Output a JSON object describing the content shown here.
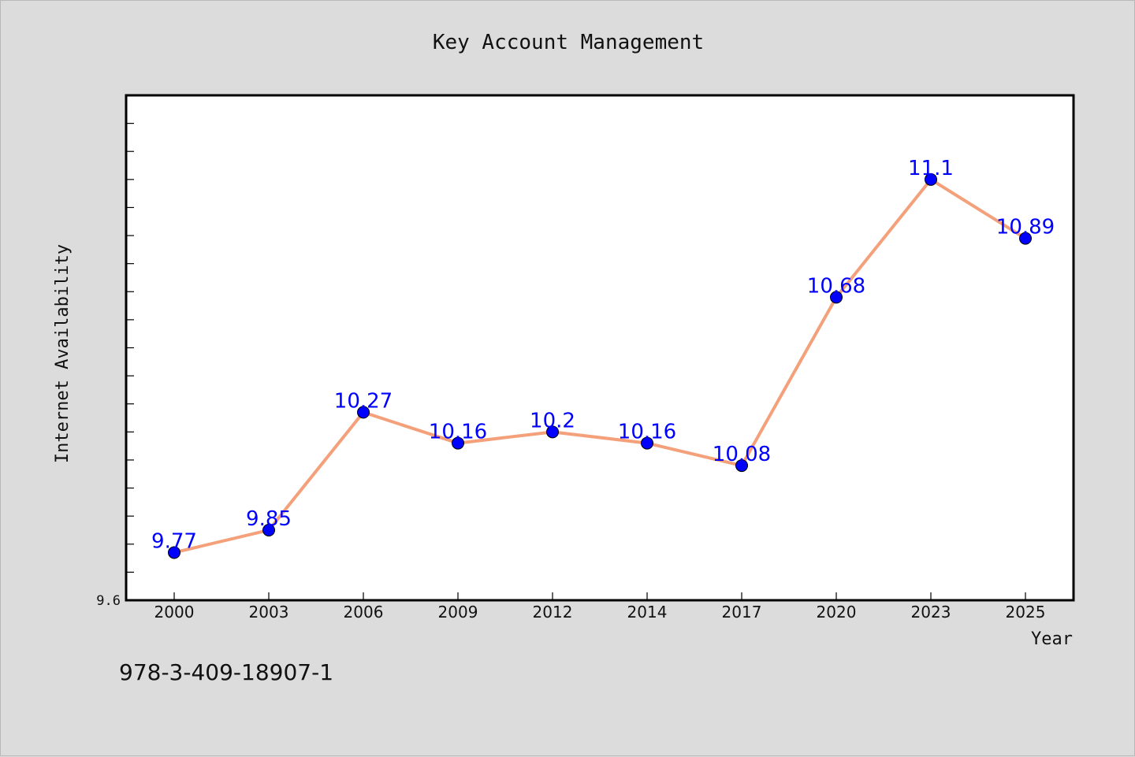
{
  "chart_data": {
    "type": "line",
    "title": "Key Account Management",
    "xlabel": "Year",
    "ylabel": "Internet Availability",
    "categories": [
      "2000",
      "2003",
      "2006",
      "2009",
      "2012",
      "2014",
      "2017",
      "2020",
      "2023",
      "2025"
    ],
    "series": [
      {
        "values": [
          9.77,
          9.85,
          10.27,
          10.16,
          10.2,
          10.16,
          10.08,
          10.68,
          11.1,
          10.89
        ]
      }
    ],
    "data_labels": [
      "9.77",
      "9.85",
      "10.27",
      "10.16",
      "10.2",
      "10.16",
      "10.08",
      "10.68",
      "11.1",
      "10.89"
    ],
    "ylim": [
      9.6,
      11.4
    ],
    "y_tick_labels": [
      {
        "value": 9.6,
        "label": "9.6"
      }
    ],
    "y_minor_tick_step": 0.1,
    "grid": false,
    "line_color": "#f4a07a",
    "marker_color": "#0000ff",
    "label_color": "#0000ff"
  },
  "footer": {
    "isbn": "978-3-409-18907-1"
  }
}
